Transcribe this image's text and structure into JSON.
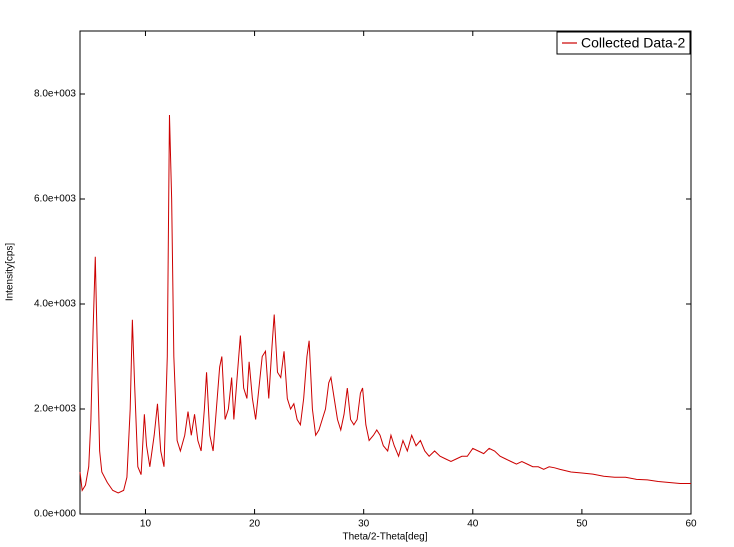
{
  "chart_data": {
    "type": "line",
    "x_label": "Theta/2-Theta[deg]",
    "y_label": "Intensity[cps]",
    "xlim": [
      4,
      60
    ],
    "ylim": [
      0,
      9200
    ],
    "xticks": [
      10,
      20,
      30,
      40,
      50,
      60
    ],
    "yticks": [
      {
        "value": 0,
        "label": "0.0e+000"
      },
      {
        "value": 2000,
        "label": "2.0e+003"
      },
      {
        "value": 4000,
        "label": "4.0e+003"
      },
      {
        "value": 6000,
        "label": "6.0e+003"
      },
      {
        "value": 8000,
        "label": "8.0e+003"
      }
    ],
    "legend": "upper right",
    "series": [
      {
        "name": "Collected Data-2",
        "color": "#cc0000",
        "x": [
          4.0,
          4.2,
          4.5,
          4.8,
          5.0,
          5.2,
          5.4,
          5.6,
          5.8,
          6.0,
          6.5,
          7.0,
          7.5,
          8.0,
          8.3,
          8.6,
          8.8,
          9.0,
          9.3,
          9.6,
          9.9,
          10.1,
          10.4,
          10.8,
          11.1,
          11.4,
          11.7,
          12.0,
          12.2,
          12.4,
          12.6,
          12.9,
          13.2,
          13.6,
          13.9,
          14.2,
          14.5,
          14.8,
          15.1,
          15.4,
          15.6,
          15.9,
          16.2,
          16.5,
          16.8,
          17.0,
          17.3,
          17.6,
          17.9,
          18.1,
          18.4,
          18.7,
          19.0,
          19.3,
          19.5,
          19.8,
          20.1,
          20.4,
          20.7,
          21.0,
          21.3,
          21.6,
          21.8,
          22.1,
          22.4,
          22.7,
          23.0,
          23.3,
          23.6,
          23.9,
          24.2,
          24.5,
          24.8,
          25.0,
          25.3,
          25.6,
          25.9,
          26.2,
          26.5,
          26.8,
          27.0,
          27.3,
          27.6,
          27.9,
          28.2,
          28.5,
          28.8,
          29.1,
          29.4,
          29.7,
          29.9,
          30.2,
          30.5,
          30.9,
          31.2,
          31.5,
          31.8,
          32.2,
          32.5,
          32.8,
          33.2,
          33.6,
          34.0,
          34.4,
          34.8,
          35.2,
          35.6,
          36.0,
          36.5,
          37,
          37.5,
          38,
          38.5,
          39,
          39.5,
          40,
          40.5,
          41,
          41.5,
          42,
          42.5,
          43,
          43.5,
          44,
          44.5,
          45,
          45.5,
          46,
          46.5,
          47,
          47.5,
          48,
          49,
          50,
          51,
          52,
          53,
          54,
          55,
          56,
          57,
          58,
          59,
          60
        ],
        "values": [
          800,
          450,
          550,
          900,
          1800,
          3500,
          4900,
          3000,
          1200,
          800,
          600,
          450,
          400,
          450,
          700,
          2000,
          3700,
          2500,
          900,
          750,
          1900,
          1300,
          900,
          1500,
          2100,
          1200,
          900,
          3000,
          7600,
          6000,
          3000,
          1400,
          1200,
          1500,
          1950,
          1500,
          1900,
          1400,
          1200,
          2000,
          2700,
          1500,
          1200,
          2000,
          2800,
          3000,
          1800,
          2000,
          2600,
          1800,
          2600,
          3400,
          2400,
          2200,
          2900,
          2200,
          1800,
          2400,
          3000,
          3100,
          2200,
          3200,
          3800,
          2700,
          2600,
          3100,
          2200,
          2000,
          2100,
          1800,
          1700,
          2200,
          3000,
          3300,
          2000,
          1500,
          1600,
          1800,
          2000,
          2500,
          2600,
          2200,
          1800,
          1600,
          1900,
          2400,
          1800,
          1700,
          1800,
          2300,
          2400,
          1700,
          1400,
          1500,
          1600,
          1500,
          1300,
          1200,
          1500,
          1300,
          1100,
          1400,
          1200,
          1500,
          1300,
          1400,
          1200,
          1100,
          1200,
          1100,
          1050,
          1000,
          1050,
          1100,
          1100,
          1250,
          1200,
          1150,
          1250,
          1200,
          1100,
          1050,
          1000,
          950,
          1000,
          950,
          900,
          900,
          850,
          900,
          880,
          850,
          800,
          780,
          760,
          720,
          700,
          700,
          660,
          650,
          620,
          600,
          580,
          580
        ]
      }
    ]
  }
}
